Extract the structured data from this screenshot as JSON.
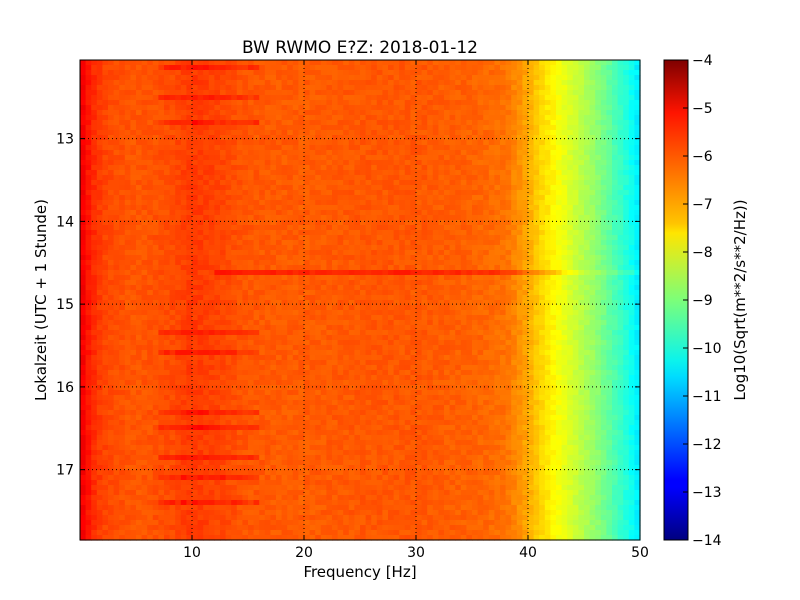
{
  "chart_data": {
    "type": "heatmap",
    "title": "BW RWMO E?Z: 2018-01-12",
    "xlabel": "Frequency [Hz]",
    "ylabel": "Lokalzeit (UTC + 1 Stunde)",
    "xlim": [
      0,
      50
    ],
    "ylim": [
      17.85,
      12.05
    ],
    "y_inverted": true,
    "x_ticks": [
      10,
      20,
      30,
      40,
      50
    ],
    "y_ticks": [
      13,
      14,
      15,
      16,
      17
    ],
    "grid": true,
    "colormap": "jet",
    "colorbar": {
      "label": "Log10(Sqrt(m**2/s**2/Hz))",
      "range": [
        -14,
        -4
      ],
      "ticks": [
        -4,
        -5,
        -6,
        -7,
        -8,
        -9,
        -10,
        -11,
        -12,
        -13,
        -14
      ]
    },
    "spectrum_profile": {
      "frequency_hz": [
        0,
        0.5,
        1,
        2,
        3,
        5,
        8,
        10,
        12,
        15,
        20,
        25,
        30,
        35,
        38,
        39,
        40,
        41,
        42,
        43,
        44,
        45,
        46,
        47,
        48,
        49,
        50
      ],
      "log_amplitude": [
        -5.1,
        -5.3,
        -5.6,
        -5.9,
        -6.0,
        -6.1,
        -6.0,
        -5.8,
        -5.9,
        -6.1,
        -6.15,
        -6.1,
        -6.1,
        -6.2,
        -6.35,
        -6.6,
        -6.9,
        -7.3,
        -7.6,
        -7.9,
        -8.2,
        -8.5,
        -8.8,
        -9.2,
        -9.6,
        -10.0,
        -10.5
      ]
    },
    "features": [
      {
        "type": "horizontal_band",
        "time": 14.62,
        "freq_range": [
          12,
          50
        ],
        "delta": 0.55
      },
      {
        "type": "time_band",
        "freq_range": [
          7,
          16
        ],
        "times": [
          12.16,
          12.5,
          12.8,
          15.35,
          15.6,
          16.3,
          16.5,
          16.85,
          17.1,
          17.4
        ],
        "delta": 0.45
      }
    ]
  }
}
